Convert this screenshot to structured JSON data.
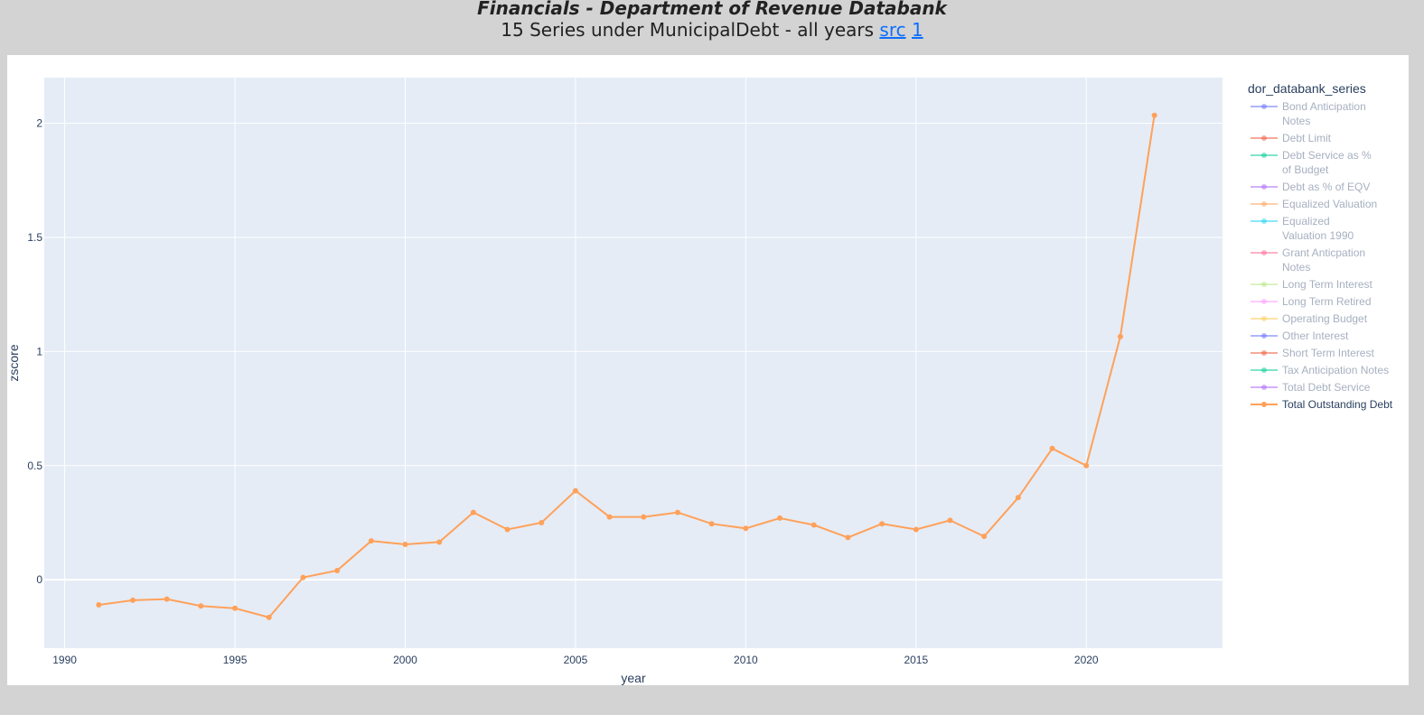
{
  "header": {
    "title": "Financials - Department of Revenue Databank",
    "subtitle_text": "15 Series under MunicipalDebt - all years",
    "link_src": "src",
    "link_1": "1"
  },
  "chart_data": {
    "type": "line",
    "xlabel": "year",
    "ylabel": "zscore",
    "xlim": [
      1989.4,
      2024.0
    ],
    "ylim": [
      -0.3,
      2.2
    ],
    "x_ticks": [
      1990,
      1995,
      2000,
      2005,
      2010,
      2015,
      2020
    ],
    "y_ticks": [
      0,
      0.5,
      1,
      1.5,
      2
    ],
    "grid": true,
    "legend_title": "dor_databank_series",
    "legend_placement": "right",
    "series": [
      {
        "name": "Bond Anticipation Notes",
        "color": "#636efa",
        "visible": false,
        "x": [],
        "y": []
      },
      {
        "name": "Debt Limit",
        "color": "#EF553B",
        "visible": false,
        "x": [],
        "y": []
      },
      {
        "name": "Debt Service as % of Budget",
        "color": "#00cc96",
        "visible": false,
        "x": [],
        "y": []
      },
      {
        "name": "Debt as % of EQV",
        "color": "#ab63fa",
        "visible": false,
        "x": [],
        "y": []
      },
      {
        "name": "Equalized Valuation",
        "color": "#FFA15A",
        "visible": false,
        "x": [],
        "y": []
      },
      {
        "name": "Equalized Valuation 1990",
        "color": "#19d3f3",
        "visible": false,
        "x": [],
        "y": []
      },
      {
        "name": "Grant Anticpation Notes",
        "color": "#FF6692",
        "visible": false,
        "x": [],
        "y": []
      },
      {
        "name": "Long Term Interest",
        "color": "#B6E880",
        "visible": false,
        "x": [],
        "y": []
      },
      {
        "name": "Long Term Retired",
        "color": "#FF97FF",
        "visible": false,
        "x": [],
        "y": []
      },
      {
        "name": "Operating Budget",
        "color": "#FECB52",
        "visible": false,
        "x": [],
        "y": []
      },
      {
        "name": "Other Interest",
        "color": "#636efa",
        "visible": false,
        "x": [],
        "y": []
      },
      {
        "name": "Short Term Interest",
        "color": "#EF553B",
        "visible": false,
        "x": [],
        "y": []
      },
      {
        "name": "Tax Anticipation Notes",
        "color": "#00cc96",
        "visible": false,
        "x": [],
        "y": []
      },
      {
        "name": "Total Debt Service",
        "color": "#ab63fa",
        "visible": false,
        "x": [],
        "y": []
      },
      {
        "name": "Total Outstanding Debt",
        "color": "#FFA15A",
        "visible": true,
        "x": [
          1991,
          1992,
          1993,
          1994,
          1995,
          1996,
          1997,
          1998,
          1999,
          2000,
          2001,
          2002,
          2003,
          2004,
          2005,
          2006,
          2007,
          2008,
          2009,
          2010,
          2011,
          2012,
          2013,
          2014,
          2015,
          2016,
          2017,
          2018,
          2019,
          2020,
          2021,
          2022
        ],
        "y": [
          -0.11,
          -0.09,
          -0.085,
          -0.115,
          -0.125,
          -0.165,
          0.01,
          0.04,
          0.17,
          0.155,
          0.165,
          0.295,
          0.22,
          0.25,
          0.39,
          0.275,
          0.275,
          0.295,
          0.245,
          0.225,
          0.27,
          0.24,
          0.185,
          0.245,
          0.22,
          0.26,
          0.19,
          0.36,
          0.575,
          0.5,
          1.065,
          2.035
        ]
      }
    ]
  },
  "colors": {
    "page_background": "#d3d3d3",
    "plot_background": "#e5ecf6",
    "grid": "#ffffff",
    "link": "#0d6efd",
    "text": "#2a3f5f",
    "hidden_legend_text": "#a6b0c0"
  }
}
